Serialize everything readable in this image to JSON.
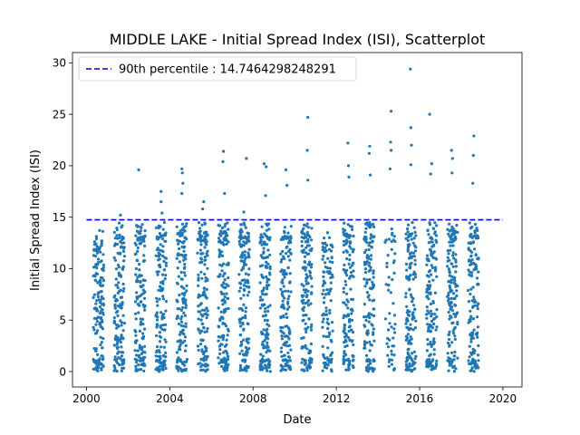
{
  "chart_data": {
    "type": "scatter",
    "title": "MIDDLE LAKE - Initial Spread Index (ISI), Scatterplot",
    "xlabel": "Date",
    "ylabel": "Initial Spread Index (ISI)",
    "xlim": [
      "1999-05-01",
      "2020-12-01"
    ],
    "ylim": [
      -1.5,
      31.0
    ],
    "x_ticks": [
      "2000",
      "2004",
      "2008",
      "2012",
      "2016",
      "2020"
    ],
    "y_ticks": [
      "0",
      "5",
      "10",
      "15",
      "20",
      "25",
      "30"
    ],
    "grid": false,
    "legend_position": "top-left",
    "reference_line": {
      "label": "90th percentile : 14.7464298248291",
      "value": 14.7464298248291,
      "x_range": [
        "2000-01-01",
        "2019-12-31"
      ],
      "color": "#0000cc",
      "style": "dashed"
    },
    "series": [
      {
        "color": "#1f77b4",
        "marker": "dot",
        "season_months": "May-Oct",
        "seasons": [
          {
            "year": 2000,
            "count": 150,
            "max": 13.7,
            "notable": [
              [
                0.6,
                13.7
              ],
              [
                0.3,
                12.9
              ]
            ]
          },
          {
            "year": 2001,
            "count": 150,
            "max": 15.2,
            "notable": [
              [
                0.6,
                15.2
              ],
              [
                0.5,
                13.0
              ]
            ]
          },
          {
            "year": 2002,
            "count": 150,
            "max": 19.6,
            "notable": [
              [
                0.35,
                19.6
              ],
              [
                0.5,
                13.4
              ]
            ]
          },
          {
            "year": 2003,
            "count": 150,
            "max": 17.5,
            "notable": [
              [
                0.5,
                17.5
              ],
              [
                0.5,
                16.5
              ],
              [
                0.6,
                15.4
              ]
            ]
          },
          {
            "year": 2004,
            "count": 150,
            "max": 19.7,
            "notable": [
              [
                0.5,
                19.7
              ],
              [
                0.55,
                19.3
              ],
              [
                0.6,
                18.3
              ],
              [
                0.5,
                17.3
              ]
            ]
          },
          {
            "year": 2005,
            "count": 150,
            "max": 16.5,
            "notable": [
              [
                0.6,
                16.5
              ],
              [
                0.5,
                15.8
              ]
            ]
          },
          {
            "year": 2006,
            "count": 150,
            "max": 21.4,
            "notable": [
              [
                0.5,
                21.4
              ],
              [
                0.45,
                20.4
              ],
              [
                0.6,
                17.3
              ]
            ]
          },
          {
            "year": 2007,
            "count": 150,
            "max": 20.7,
            "notable": [
              [
                0.7,
                20.7
              ],
              [
                0.45,
                15.5
              ]
            ]
          },
          {
            "year": 2008,
            "count": 150,
            "max": 20.2,
            "notable": [
              [
                0.4,
                20.2
              ],
              [
                0.6,
                19.9
              ],
              [
                0.55,
                17.1
              ]
            ]
          },
          {
            "year": 2009,
            "count": 150,
            "max": 19.6,
            "notable": [
              [
                0.5,
                19.6
              ],
              [
                0.6,
                18.1
              ]
            ]
          },
          {
            "year": 2010,
            "count": 150,
            "max": 24.7,
            "notable": [
              [
                0.6,
                24.7
              ],
              [
                0.55,
                21.5
              ],
              [
                0.6,
                18.6
              ]
            ]
          },
          {
            "year": 2011,
            "count": 110,
            "max": 13.5,
            "notable": [
              [
                0.5,
                13.5
              ]
            ]
          },
          {
            "year": 2012,
            "count": 150,
            "max": 22.2,
            "notable": [
              [
                0.45,
                22.2
              ],
              [
                0.5,
                20.0
              ],
              [
                0.55,
                18.9
              ]
            ]
          },
          {
            "year": 2013,
            "count": 150,
            "max": 21.9,
            "notable": [
              [
                0.55,
                21.9
              ],
              [
                0.5,
                21.2
              ],
              [
                0.6,
                19.1
              ]
            ]
          },
          {
            "year": 2014,
            "count": 60,
            "max": 25.3,
            "notable": [
              [
                0.6,
                25.3
              ],
              [
                0.55,
                22.3
              ],
              [
                0.6,
                21.5
              ],
              [
                0.5,
                19.7
              ]
            ]
          },
          {
            "year": 2015,
            "count": 150,
            "max": 29.4,
            "notable": [
              [
                0.45,
                29.4
              ],
              [
                0.5,
                23.7
              ],
              [
                0.55,
                22.0
              ],
              [
                0.5,
                20.1
              ]
            ]
          },
          {
            "year": 2016,
            "count": 150,
            "max": 25.0,
            "notable": [
              [
                0.3,
                25.0
              ],
              [
                0.5,
                20.2
              ],
              [
                0.4,
                19.2
              ]
            ]
          },
          {
            "year": 2017,
            "count": 150,
            "max": 21.5,
            "notable": [
              [
                0.4,
                21.5
              ],
              [
                0.5,
                20.7
              ],
              [
                0.45,
                19.3
              ]
            ]
          },
          {
            "year": 2018,
            "count": 150,
            "max": 22.9,
            "notable": [
              [
                0.55,
                22.9
              ],
              [
                0.5,
                21.0
              ],
              [
                0.45,
                18.3
              ]
            ]
          }
        ]
      }
    ]
  }
}
